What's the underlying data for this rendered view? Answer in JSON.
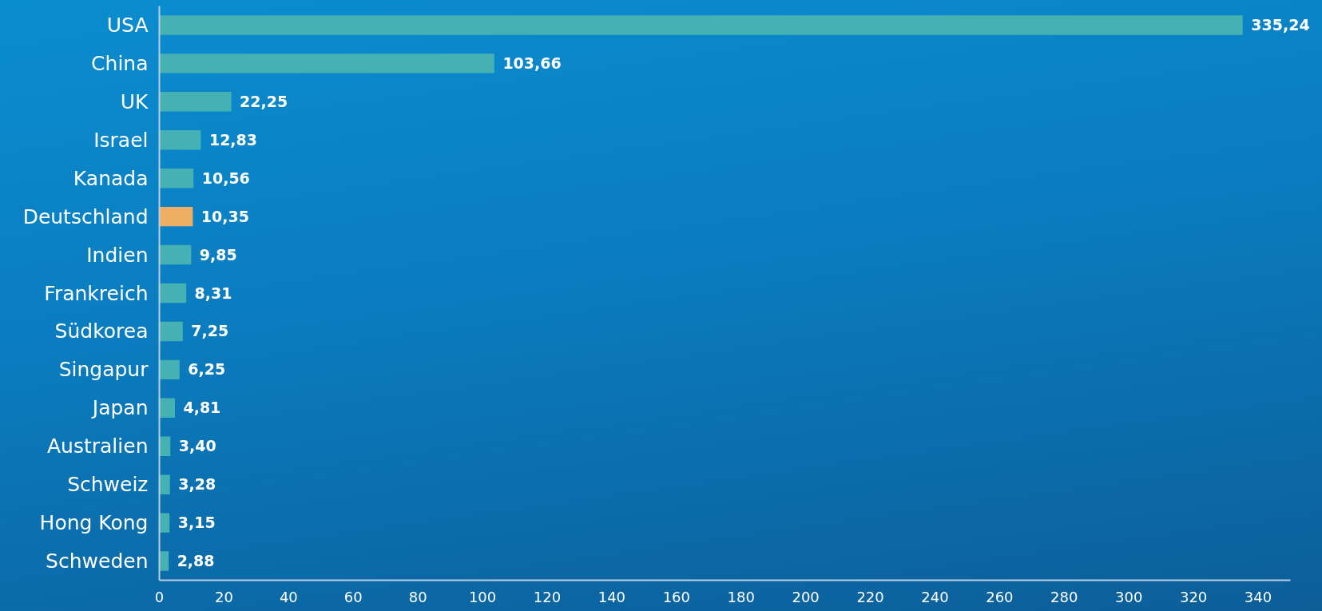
{
  "chart_data": {
    "type": "bar",
    "orientation": "horizontal",
    "categories": [
      "USA",
      "China",
      "UK",
      "Israel",
      "Kanada",
      "Deutschland",
      "Indien",
      "Frankreich",
      "Südkorea",
      "Singapur",
      "Japan",
      "Australien",
      "Schweiz",
      "Hong Kong",
      "Schweden"
    ],
    "values": [
      335.24,
      103.66,
      22.25,
      12.83,
      10.56,
      10.35,
      9.85,
      8.31,
      7.25,
      6.25,
      4.81,
      3.4,
      3.28,
      3.15,
      2.88
    ],
    "colors": [
      "#46b1b2",
      "#46b1b2",
      "#46b1b2",
      "#46b1b2",
      "#46b1b2",
      "#eeae63",
      "#46b1b2",
      "#46b1b2",
      "#46b1b2",
      "#46b1b2",
      "#46b1b2",
      "#46b1b2",
      "#46b1b2",
      "#46b1b2",
      "#46b1b2"
    ],
    "value_labels": [
      "335,24",
      "103,66",
      "22,25",
      "12,83",
      "10,56",
      "10,35",
      "9,85",
      "8,31",
      "7,25",
      "6,25",
      "4,81",
      "3,40",
      "3,28",
      "3,15",
      "2,88"
    ],
    "xlim": [
      0,
      350
    ],
    "xticks": [
      0,
      20,
      40,
      60,
      80,
      100,
      120,
      140,
      160,
      180,
      200,
      220,
      240,
      260,
      280,
      300,
      320,
      340
    ]
  }
}
